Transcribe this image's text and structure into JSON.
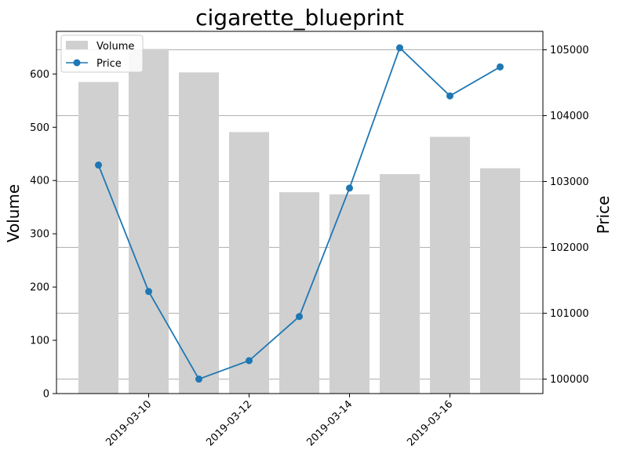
{
  "chart_data": {
    "type": "bar",
    "title": "cigarette_blueprint",
    "x": [
      "2019-03-09",
      "2019-03-10",
      "2019-03-11",
      "2019-03-12",
      "2019-03-13",
      "2019-03-14",
      "2019-03-15",
      "2019-03-16",
      "2019-03-17"
    ],
    "x_tick_labels": [
      "2019-03-10",
      "2019-03-12",
      "2019-03-14",
      "2019-03-16"
    ],
    "series": [
      {
        "name": "Volume",
        "type": "bar",
        "axis": "left",
        "color": "#d0d0d0",
        "values": [
          585,
          647,
          603,
          491,
          378,
          374,
          412,
          482,
          423
        ]
      },
      {
        "name": "Price",
        "type": "line",
        "axis": "right",
        "color": "#1f77b4",
        "marker": "circle",
        "values": [
          103250,
          101330,
          100000,
          100280,
          100950,
          102900,
          105030,
          104300,
          104740
        ]
      }
    ],
    "ylabel_left": "Volume",
    "ylabel_right": "Price",
    "ylim_left": [
      0,
      680
    ],
    "yticks_left": [
      0,
      100,
      200,
      300,
      400,
      500,
      600
    ],
    "ylim_right": [
      99780,
      105280
    ],
    "yticks_right": [
      100000,
      101000,
      102000,
      103000,
      104000,
      105000
    ],
    "grid": "horizontal, right axis",
    "legend": {
      "placement": "top-left",
      "entries": [
        "Volume",
        "Price"
      ]
    }
  }
}
